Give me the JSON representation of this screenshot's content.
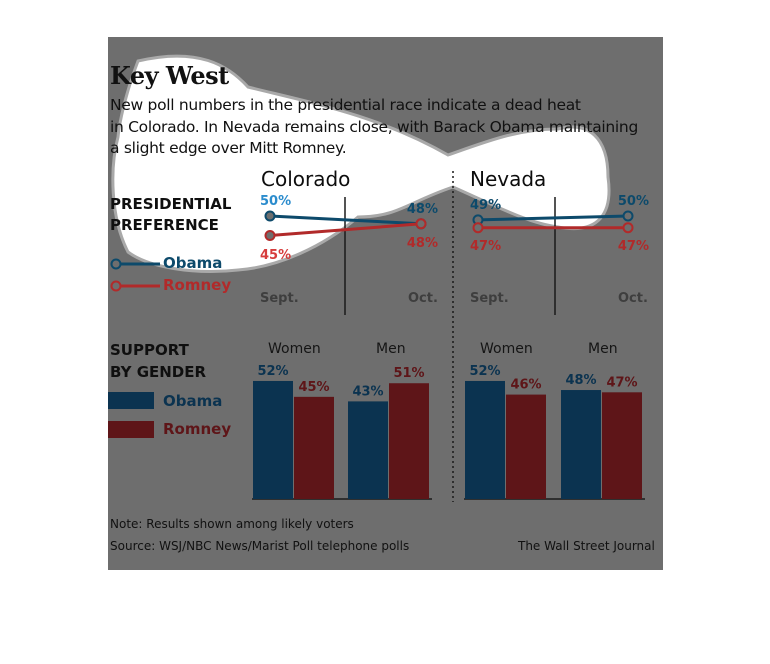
{
  "title": "Key West",
  "subtitle_lines": [
    "New poll numbers in the presidential race indicate a dead heat",
    "in Colorado. In Nevada remains close, with Barack Obama maintaining",
    "a slight edge over Mitt Romney."
  ],
  "sections": {
    "preference": [
      "PRESIDENTIAL",
      "PREFERENCE"
    ],
    "gender": [
      "SUPPORT",
      "BY GENDER"
    ]
  },
  "legend": {
    "obama": "Obama",
    "romney": "Romney"
  },
  "colors": {
    "background": "#6e6e6e",
    "obama_line": "#0d4a6b",
    "romney_line": "#b12a2a",
    "obama_bar": "#0b3350",
    "romney_bar": "#5e1518",
    "obama_highlight": "#2b8ccd",
    "romney_highlight": "#d63c3c"
  },
  "footer": {
    "note": "Note: Results shown among likely voters",
    "source": "Source: WSJ/NBC News/Marist Poll telephone polls",
    "credit": "The Wall Street Journal"
  },
  "chart_data": [
    {
      "type": "line",
      "title": "Colorado",
      "x": [
        "Sept.",
        "Oct."
      ],
      "series": [
        {
          "name": "Obama",
          "values": [
            50,
            48
          ],
          "labels": [
            "50%",
            "48%"
          ]
        },
        {
          "name": "Romney",
          "values": [
            45,
            48
          ],
          "labels": [
            "45%",
            "48%"
          ]
        }
      ]
    },
    {
      "type": "line",
      "title": "Nevada",
      "x": [
        "Sept.",
        "Oct."
      ],
      "series": [
        {
          "name": "Obama",
          "values": [
            49,
            50
          ],
          "labels": [
            "49%",
            "50%"
          ]
        },
        {
          "name": "Romney",
          "values": [
            47,
            47
          ],
          "labels": [
            "47%",
            "47%"
          ]
        }
      ]
    },
    {
      "type": "bar",
      "title": "Colorado",
      "categories": [
        "Women",
        "Men"
      ],
      "series": [
        {
          "name": "Obama",
          "values": [
            52,
            43
          ],
          "labels": [
            "52%",
            "43%"
          ]
        },
        {
          "name": "Romney",
          "values": [
            45,
            51
          ],
          "labels": [
            "45%",
            "51%"
          ]
        }
      ]
    },
    {
      "type": "bar",
      "title": "Nevada",
      "categories": [
        "Women",
        "Men"
      ],
      "series": [
        {
          "name": "Obama",
          "values": [
            52,
            48
          ],
          "labels": [
            "52%",
            "48%"
          ]
        },
        {
          "name": "Romney",
          "values": [
            46,
            47
          ],
          "labels": [
            "46%",
            "47%"
          ]
        }
      ]
    }
  ]
}
